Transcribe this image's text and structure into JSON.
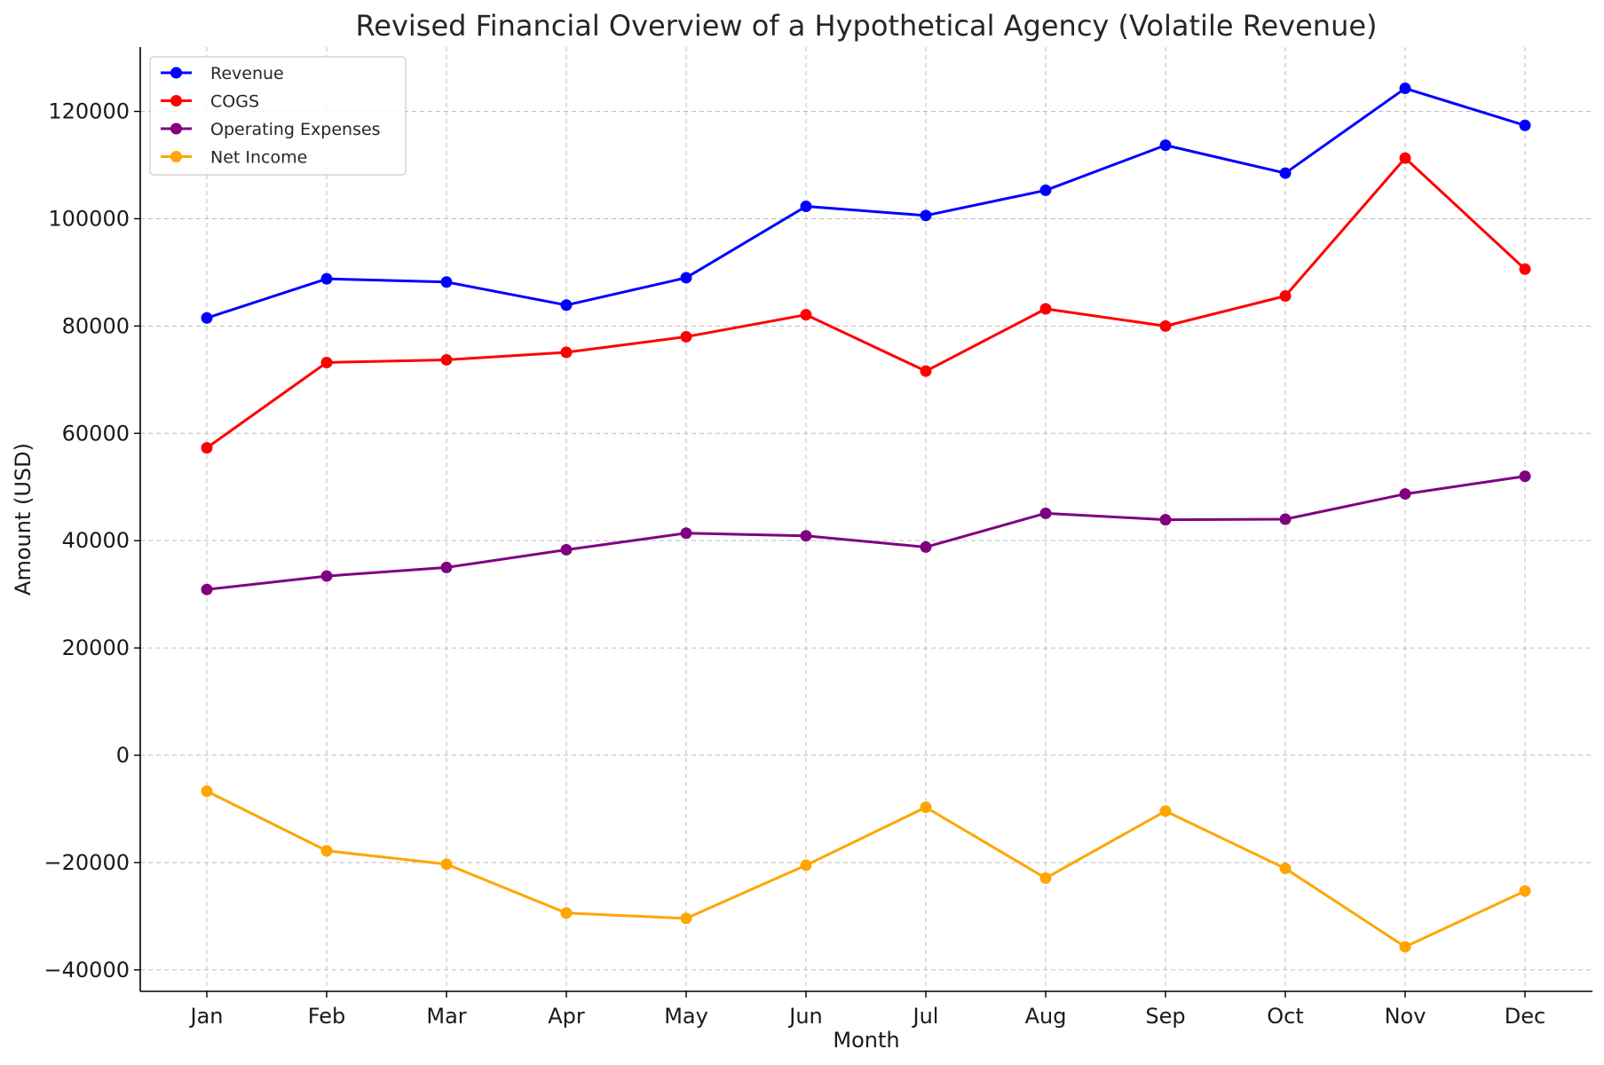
{
  "chart_data": {
    "type": "line",
    "title": "Revised Financial Overview of a Hypothetical Agency (Volatile Revenue)",
    "xlabel": "Month",
    "ylabel": "Amount (USD)",
    "categories": [
      "Jan",
      "Feb",
      "Mar",
      "Apr",
      "May",
      "Jun",
      "Jul",
      "Aug",
      "Sep",
      "Oct",
      "Nov",
      "Dec"
    ],
    "ylim": [
      -44000,
      132000
    ],
    "yticks": [
      -40000,
      -20000,
      0,
      20000,
      40000,
      60000,
      80000,
      100000,
      120000
    ],
    "ytick_labels": [
      "−40000",
      "−20000",
      "0",
      "20000",
      "40000",
      "60000",
      "80000",
      "100000",
      "120000"
    ],
    "grid": true,
    "legend_position": "top-left",
    "series": [
      {
        "name": "Revenue",
        "color": "#0000ff",
        "values": [
          81500,
          88800,
          88200,
          83900,
          89000,
          102300,
          100600,
          105300,
          113700,
          108500,
          124300,
          117400
        ]
      },
      {
        "name": "COGS",
        "color": "#ff0000",
        "values": [
          57300,
          73200,
          73700,
          75100,
          78000,
          82100,
          71600,
          83200,
          80000,
          85600,
          111300,
          90600
        ]
      },
      {
        "name": "Operating Expenses",
        "color": "#800080",
        "values": [
          30900,
          33400,
          35000,
          38300,
          41400,
          40900,
          38800,
          45100,
          43900,
          44000,
          48700,
          52000
        ]
      },
      {
        "name": "Net Income",
        "color": "#ffa500",
        "values": [
          -6700,
          -17800,
          -20300,
          -29400,
          -30400,
          -20500,
          -9700,
          -22900,
          -10400,
          -21100,
          -35700,
          -25300
        ]
      }
    ]
  }
}
